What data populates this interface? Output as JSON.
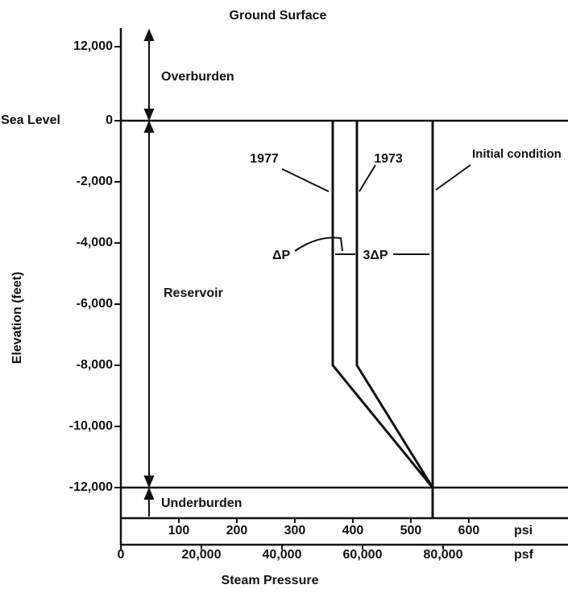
{
  "chart_data": {
    "type": "line",
    "title": "Ground Surface",
    "ylabel": "Elevation (feet)",
    "xlabel": "Steam Pressure",
    "xunit": "psf",
    "x2unit": "psi",
    "sea_level_label": "Sea Level",
    "zones": [
      "Overburden",
      "Reservoir",
      "Underburden"
    ],
    "annotations": [
      "ΔP",
      "3ΔP"
    ],
    "ylim": [
      -13000,
      15000
    ],
    "yticks": [
      {
        "value": 12000,
        "label": "12,000"
      },
      0,
      {
        "value": -2000,
        "label": "-2,000"
      },
      {
        "value": -4000,
        "label": "-4,000"
      },
      {
        "value": -6000,
        "label": "-6,000"
      },
      {
        "value": -8000,
        "label": "-8,000"
      },
      {
        "value": -10000,
        "label": "-10,000"
      },
      {
        "value": -12000,
        "label": "-12,000"
      }
    ],
    "xlim": [
      0,
      111000
    ],
    "xticks": [
      0,
      {
        "value": 20000,
        "label": "20,000"
      },
      {
        "value": 40000,
        "label": "40,000"
      },
      {
        "value": 60000,
        "label": "60,000"
      },
      {
        "value": 80000,
        "label": "80,000"
      }
    ],
    "x2lim": [
      0,
      771
    ],
    "x2ticks": [
      100,
      200,
      300,
      400,
      500,
      600
    ],
    "series": [
      {
        "name": "1977",
        "color": "#111111",
        "x": [
          52600,
          52600,
          77400
        ],
        "values": [
          0,
          -8000,
          -12000
        ]
      },
      {
        "name": "1973",
        "color": "#111111",
        "x": [
          58600,
          58600,
          77400
        ],
        "values": [
          0,
          -8000,
          -12000
        ]
      },
      {
        "name": "Initial condition",
        "color": "#111111",
        "x": [
          77400,
          77400
        ],
        "values": [
          0,
          -13000
        ]
      }
    ]
  }
}
